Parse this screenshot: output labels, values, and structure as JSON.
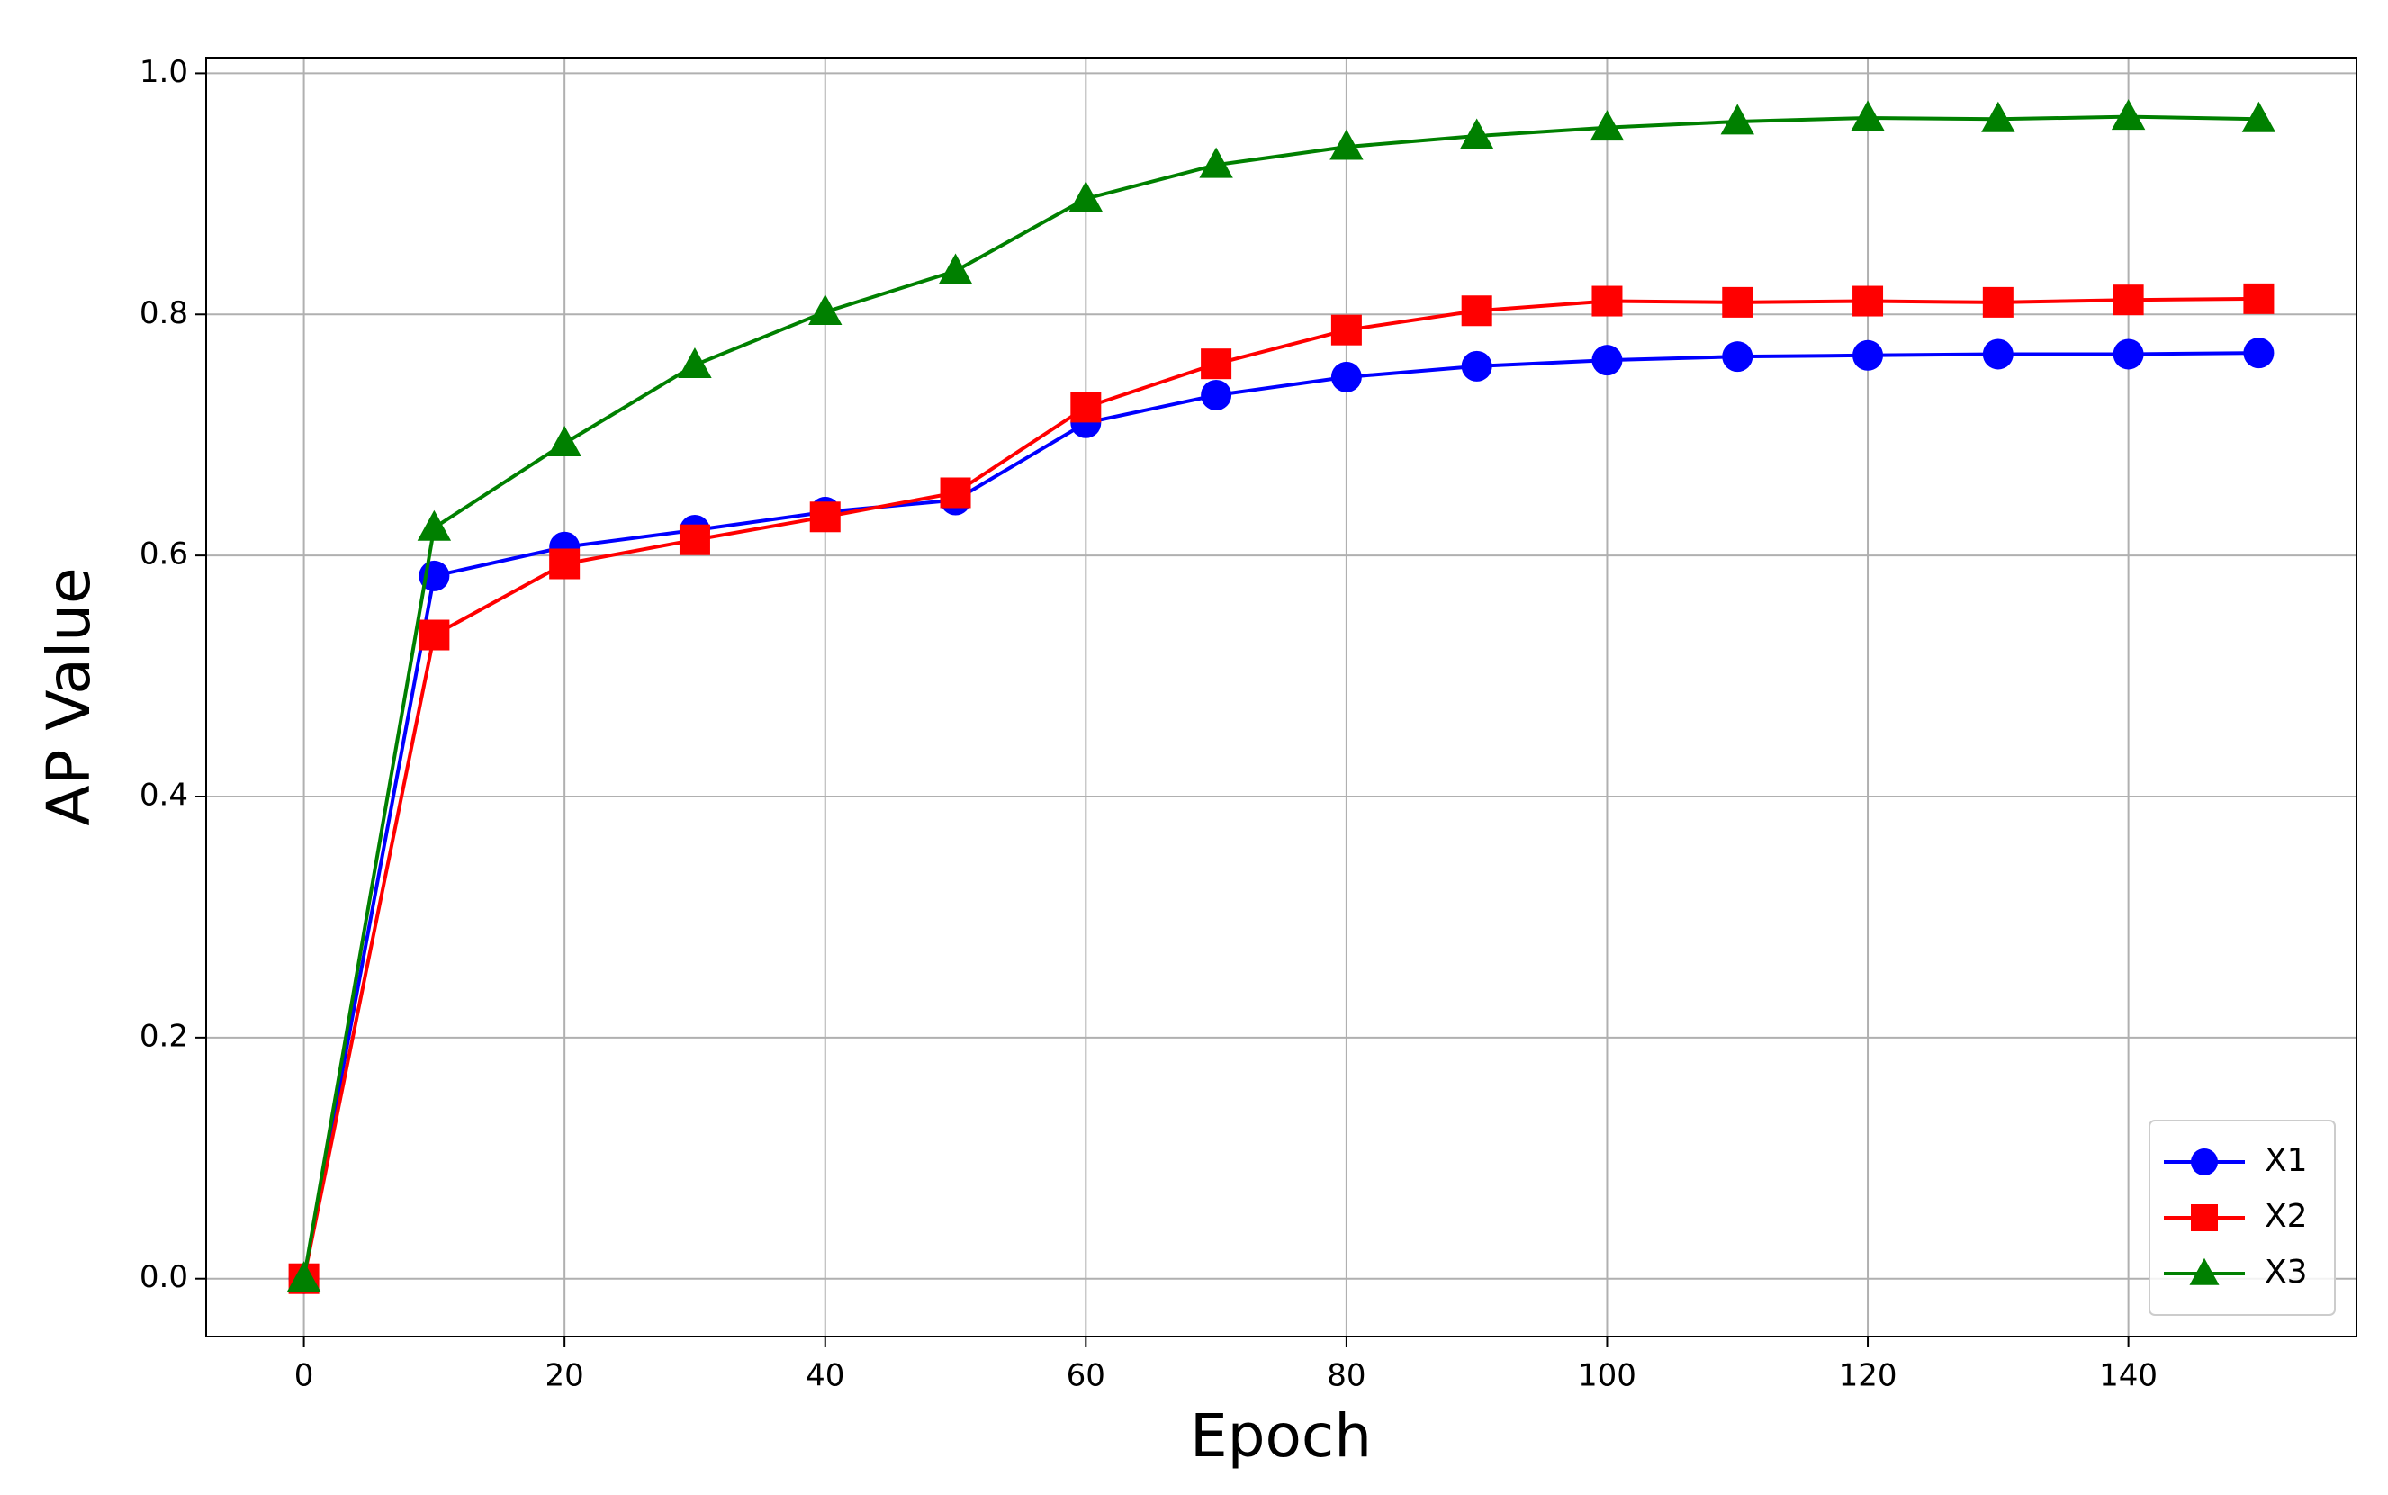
{
  "chart_data": {
    "type": "line",
    "x_label": "Epoch",
    "y_label": "AP Value",
    "x": [
      0,
      10,
      20,
      30,
      40,
      50,
      60,
      70,
      80,
      90,
      100,
      110,
      120,
      130,
      140,
      150
    ],
    "series": [
      {
        "name": "X1",
        "color": "#0000ff",
        "marker": "circle",
        "values": [
          0,
          0.583,
          0.607,
          0.621,
          0.636,
          0.646,
          0.71,
          0.733,
          0.748,
          0.757,
          0.762,
          0.765,
          0.766,
          0.767,
          0.767,
          0.768
        ]
      },
      {
        "name": "X2",
        "color": "#ff0000",
        "marker": "square",
        "values": [
          0,
          0.534,
          0.593,
          0.613,
          0.632,
          0.652,
          0.723,
          0.759,
          0.787,
          0.803,
          0.811,
          0.81,
          0.811,
          0.81,
          0.812,
          0.813
        ]
      },
      {
        "name": "X3",
        "color": "#008000",
        "marker": "triangle",
        "values": [
          0,
          0.623,
          0.693,
          0.758,
          0.802,
          0.836,
          0.896,
          0.924,
          0.939,
          0.948,
          0.955,
          0.96,
          0.963,
          0.962,
          0.964,
          0.962
        ]
      }
    ],
    "xlim": [
      -7.5,
      157.5
    ],
    "xticks": [
      0,
      20,
      40,
      60,
      80,
      100,
      120,
      140
    ],
    "ylim": [
      -0.048,
      1.013
    ],
    "yticks": [
      {
        "value": 0,
        "label": "0.0"
      },
      0.2,
      0.4,
      0.6,
      0.8,
      {
        "value": 1,
        "label": "1.0"
      }
    ],
    "grid": true,
    "legend": "lower right"
  }
}
